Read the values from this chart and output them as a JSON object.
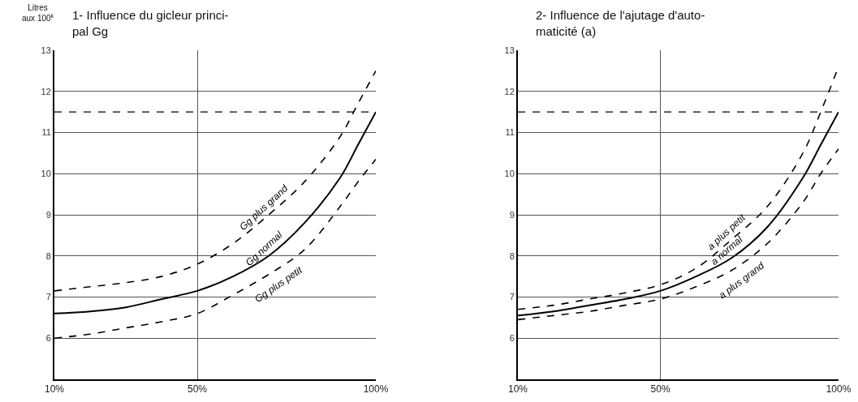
{
  "chart_data": [
    {
      "type": "line",
      "title": "1- Influence du gicleur princi-\npal Gg",
      "ylabel": "Litres\naux 100$^{k}$",
      "xlim": [
        10,
        100
      ],
      "xticks": [
        {
          "value": 10,
          "label": "10%"
        },
        {
          "value": 50,
          "label": "50%"
        },
        {
          "value": 100,
          "label": "100%"
        }
      ],
      "ylim": [
        5,
        13
      ],
      "yticks": [
        6,
        7,
        8,
        9,
        10,
        11,
        12,
        13
      ],
      "grid": true,
      "x": [
        10,
        20,
        30,
        40,
        50,
        60,
        70,
        80,
        90,
        95,
        100
      ],
      "series": [
        {
          "name": "Gg plus grand",
          "color": "#000000",
          "line_style": "dashed",
          "values": [
            7.15,
            7.25,
            7.35,
            7.5,
            7.8,
            8.3,
            9.0,
            9.8,
            10.9,
            11.7,
            12.5
          ]
        },
        {
          "name": "Gg normal",
          "color": "#000000",
          "line_style": "solid",
          "values": [
            6.6,
            6.65,
            6.75,
            6.95,
            7.15,
            7.5,
            8.0,
            8.8,
            9.9,
            10.7,
            11.5
          ]
        },
        {
          "name": "Gg plus petit",
          "color": "#000000",
          "line_style": "dashed",
          "values": [
            6.0,
            6.1,
            6.25,
            6.4,
            6.6,
            7.05,
            7.55,
            8.15,
            9.2,
            9.8,
            10.35
          ]
        }
      ],
      "ref_lines": [
        {
          "axis": "y",
          "value": 11.5,
          "label": null,
          "color": "#000000",
          "line_style": "dashed"
        }
      ]
    },
    {
      "type": "line",
      "title": "2- Influence de l'ajutage d'auto-\nmaticité (a)",
      "xlim": [
        10,
        100
      ],
      "xticks": [
        {
          "value": 10,
          "label": "10%"
        },
        {
          "value": 50,
          "label": "50%"
        },
        {
          "value": 100,
          "label": "100%"
        }
      ],
      "ylim": [
        5,
        13
      ],
      "yticks": [
        6,
        7,
        8,
        9,
        10,
        11,
        12,
        13
      ],
      "grid": true,
      "x": [
        10,
        20,
        30,
        40,
        50,
        60,
        70,
        80,
        90,
        95,
        100
      ],
      "series": [
        {
          "name": "a plus petit",
          "color": "#000000",
          "line_style": "dashed",
          "values": [
            6.7,
            6.8,
            6.95,
            7.1,
            7.3,
            7.7,
            8.4,
            9.2,
            10.5,
            11.5,
            12.6
          ]
        },
        {
          "name": "a normal",
          "color": "#000000",
          "line_style": "solid",
          "values": [
            6.55,
            6.65,
            6.8,
            6.95,
            7.15,
            7.5,
            7.95,
            8.7,
            9.9,
            10.7,
            11.5
          ]
        },
        {
          "name": "a plus grand",
          "color": "#000000",
          "line_style": "dashed",
          "values": [
            6.45,
            6.55,
            6.65,
            6.8,
            6.95,
            7.25,
            7.65,
            8.3,
            9.3,
            10.0,
            10.6
          ]
        }
      ],
      "ref_lines": [
        {
          "axis": "y",
          "value": 11.5,
          "label": null,
          "color": "#000000",
          "line_style": "dashed"
        }
      ]
    }
  ]
}
